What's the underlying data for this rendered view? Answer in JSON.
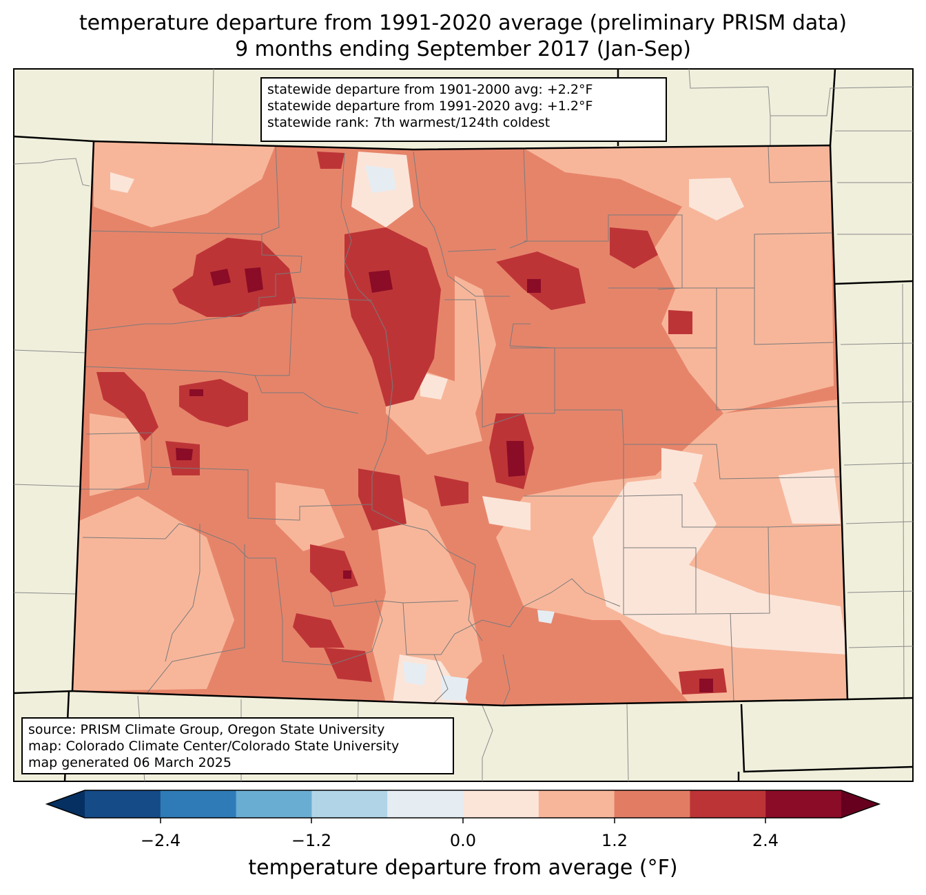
{
  "title": {
    "line1": "temperature departure from 1991-2020 average (preliminary PRISM data)",
    "line2": "9 months ending September 2017 (Jan-Sep)"
  },
  "stats": {
    "line1": "statewide departure from 1901-2000 avg: +2.2°F",
    "line2": "statewide departure from 1991-2020 avg: +1.2°F",
    "line3": "statewide rank: 7th warmest/124th coldest"
  },
  "credits": {
    "line1": "source: PRISM Climate Group, Oregon State University",
    "line2": "map: Colorado Climate Center/Colorado State University",
    "line3": "map generated 06 March 2025"
  },
  "colorbar": {
    "label": "temperature departure from average (°F)",
    "ticks": [
      "−2.4",
      "−1.2",
      "0.0",
      "1.2",
      "2.4"
    ],
    "colors": [
      "#053061",
      "#154b87",
      "#2f7bb7",
      "#6aadd2",
      "#b1d5e7",
      "#e5edf3",
      "#fbe5d9",
      "#f7b69a",
      "#e27d64",
      "#bd3437",
      "#8a0c26",
      "#67001f"
    ]
  },
  "map_colors": {
    "background": "#f0efdc",
    "land_base": "#e6846a"
  }
}
